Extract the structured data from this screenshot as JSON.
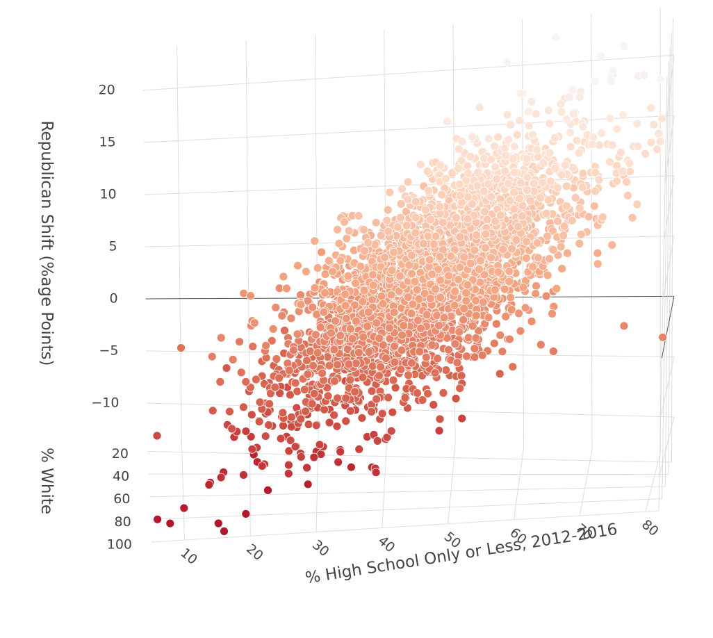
{
  "chart_data": {
    "type": "scatter3d",
    "title": "",
    "x_axis": {
      "label": "% High School Only or Less, 2012-2016",
      "ticks": [
        "10",
        "20",
        "30",
        "40",
        "50",
        "60",
        "70",
        "80"
      ],
      "range": [
        5,
        82
      ]
    },
    "y_axis": {
      "label": "% White",
      "ticks": [
        "20",
        "40",
        "60",
        "80",
        "100"
      ],
      "range": [
        5,
        100
      ]
    },
    "z_axis": {
      "label": "Republican Shift (%age Points)",
      "ticks": [
        "−10",
        "−5",
        "0",
        "5",
        "10",
        "15",
        "20"
      ],
      "range": [
        -13,
        24
      ]
    },
    "grid": true,
    "legend": "none",
    "colorscale": [
      "#b2182b",
      "#d6604d",
      "#f4a582",
      "#fddbc7",
      "#f7f7f7"
    ],
    "color_variable": "Republican Shift (%age Points)",
    "distribution": {
      "n_points": 3100,
      "x_mean": 46,
      "x_sd": 11,
      "z_mean": 5.5,
      "z_sd": 5.5,
      "xz_correlation": 0.72,
      "y_mean": 78,
      "y_sd": 20
    },
    "notable_points": [
      {
        "x": 14,
        "y": 80,
        "z": -10.2
      },
      {
        "x": 10,
        "y": 88,
        "z": -11.5
      },
      {
        "x": 16,
        "y": 75,
        "z": -9.8
      },
      {
        "x": 19,
        "y": 90,
        "z": -8.9
      },
      {
        "x": 27,
        "y": 40,
        "z": -5.8
      },
      {
        "x": 70,
        "y": 60,
        "z": 12
      },
      {
        "x": 76,
        "y": 85,
        "z": 2
      },
      {
        "x": 65,
        "y": 30,
        "z": 23.5
      },
      {
        "x": 58,
        "y": 55,
        "z": 22.8
      },
      {
        "x": 82,
        "y": 95,
        "z": 1.5
      }
    ]
  }
}
